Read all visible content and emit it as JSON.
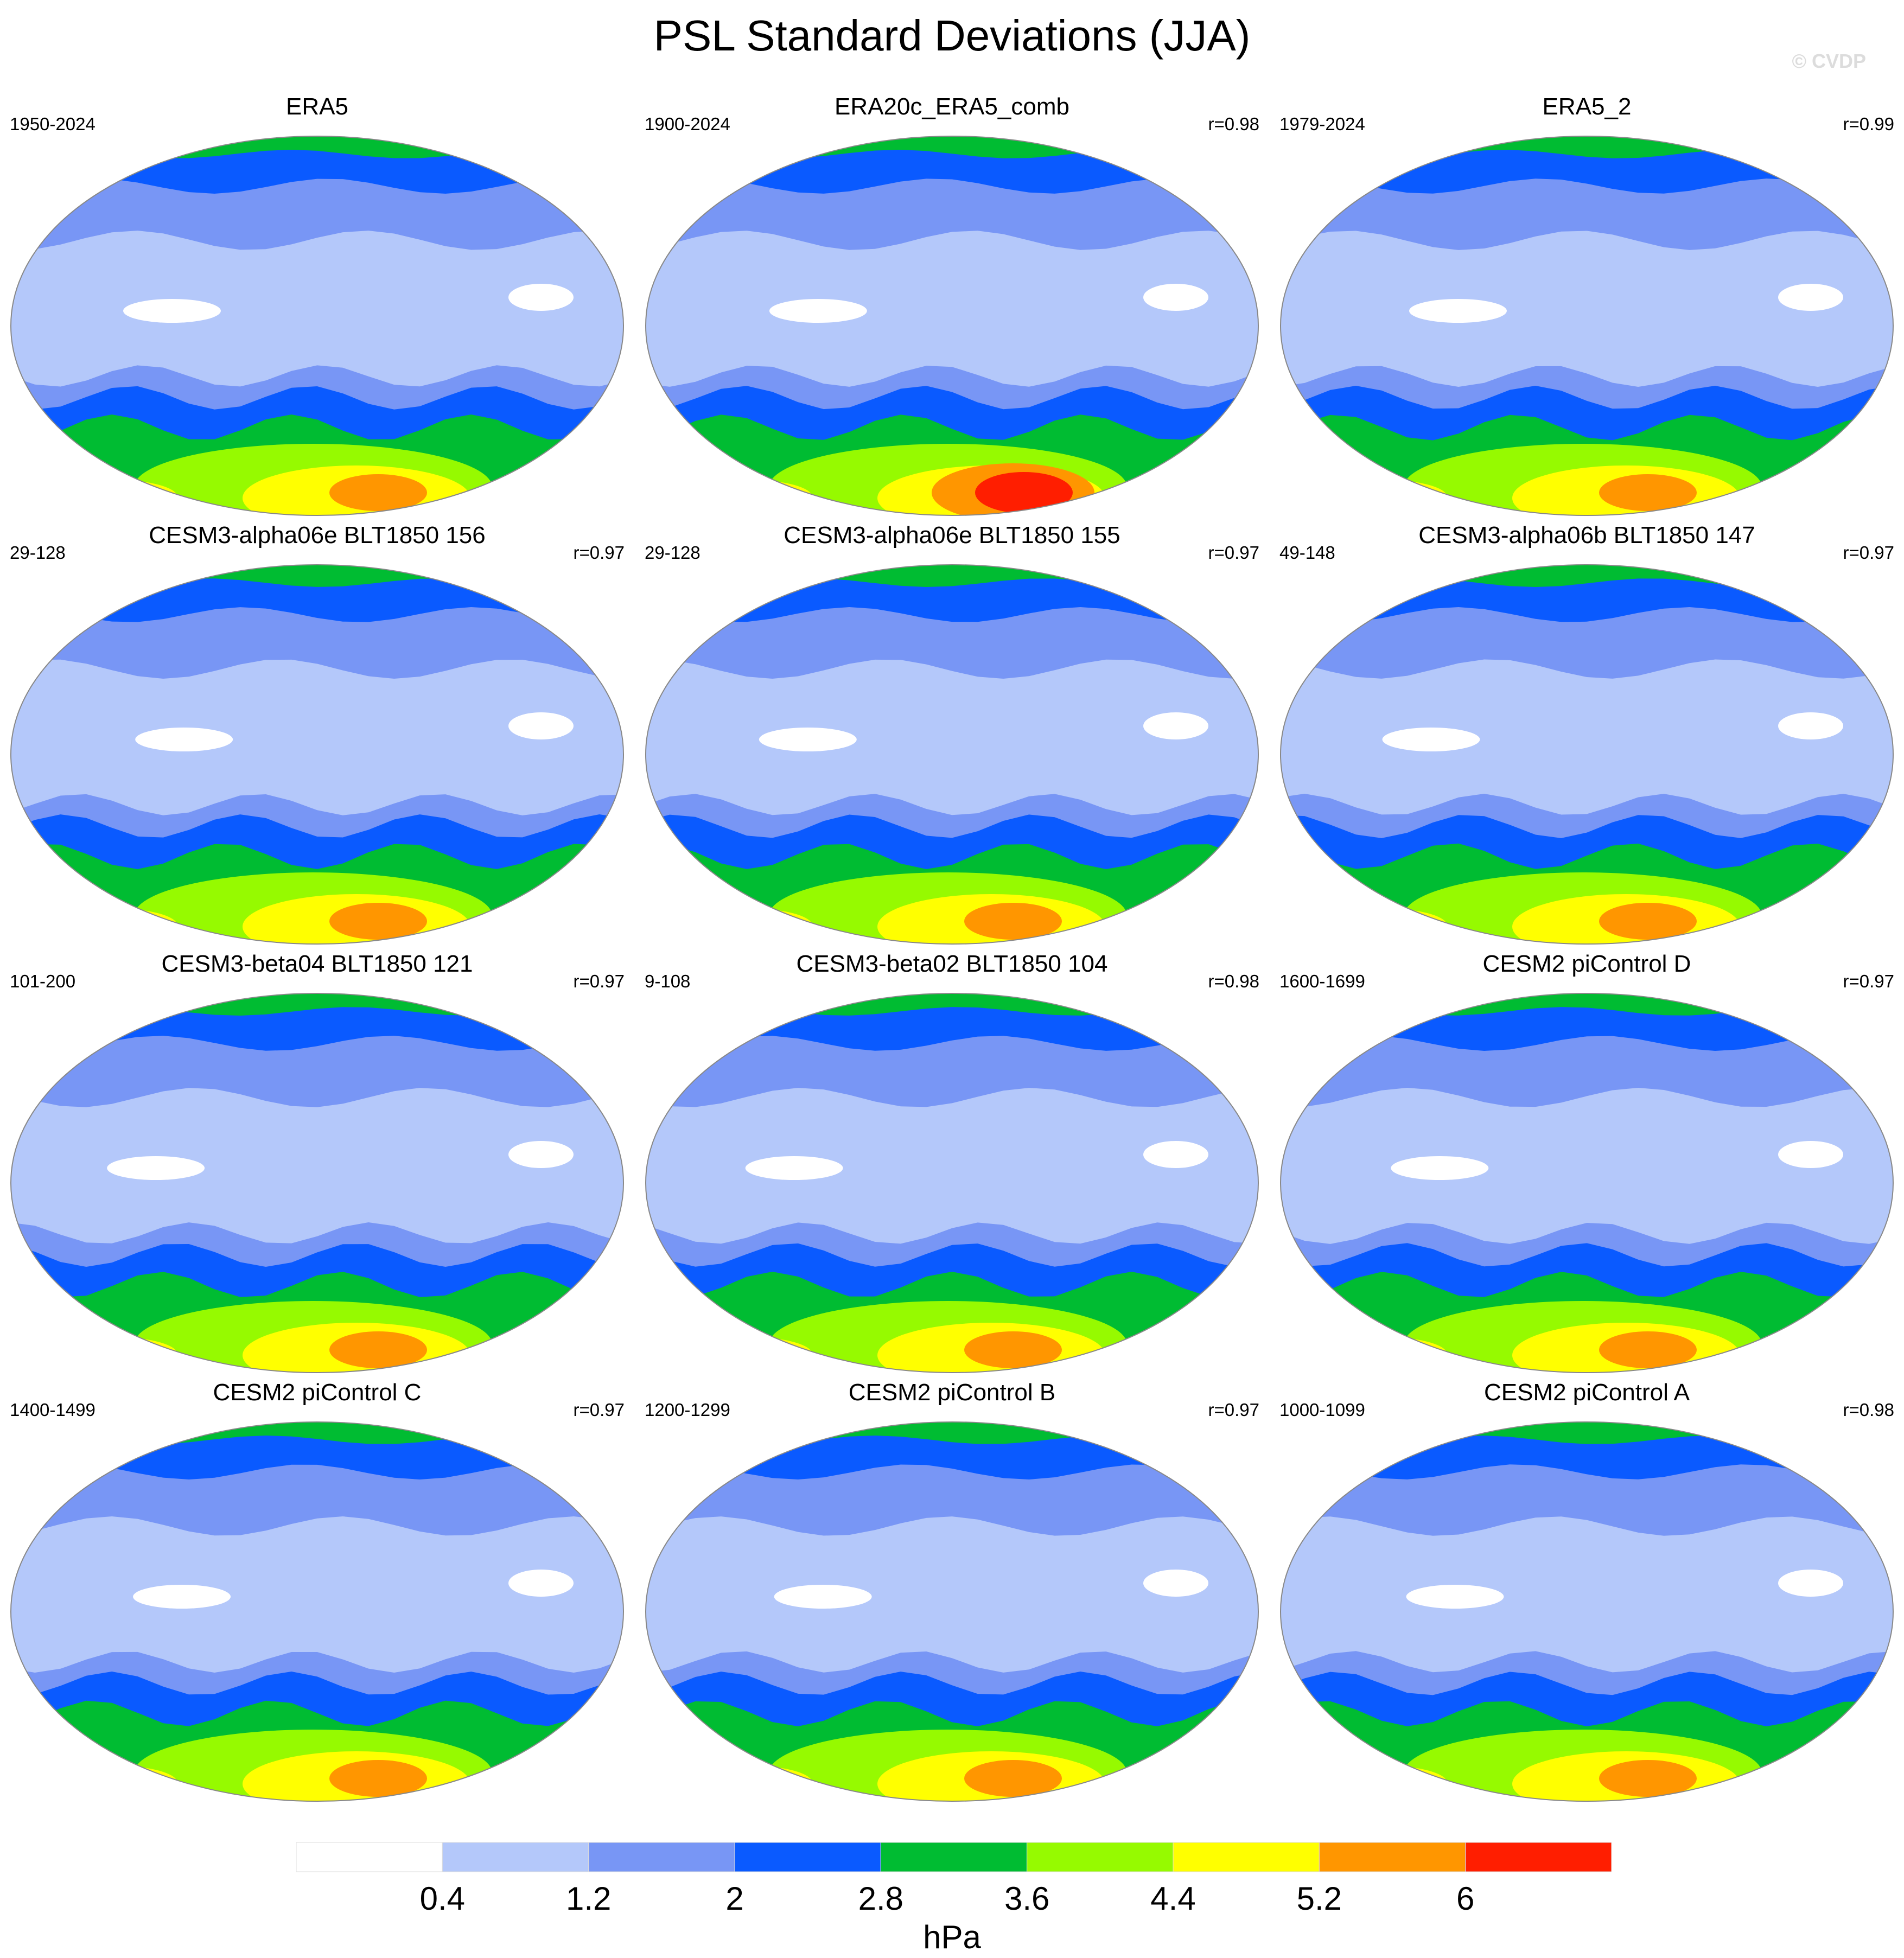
{
  "title": "PSL Standard Deviations (JJA)",
  "watermark": "© CVDP",
  "panels": [
    {
      "title": "ERA5",
      "period": "1950-2024",
      "corr": ""
    },
    {
      "title": "ERA20c_ERA5_comb",
      "period": "1900-2024",
      "corr": "r=0.98"
    },
    {
      "title": "ERA5_2",
      "period": "1979-2024",
      "corr": "r=0.99"
    },
    {
      "title": "CESM3-alpha06e BLT1850 156",
      "period": "29-128",
      "corr": "r=0.97"
    },
    {
      "title": "CESM3-alpha06e BLT1850 155",
      "period": "29-128",
      "corr": "r=0.97"
    },
    {
      "title": "CESM3-alpha06b BLT1850 147",
      "period": "49-148",
      "corr": "r=0.97"
    },
    {
      "title": "CESM3-beta04 BLT1850 121",
      "period": "101-200",
      "corr": "r=0.97"
    },
    {
      "title": "CESM3-beta02 BLT1850 104",
      "period": "9-108",
      "corr": "r=0.98"
    },
    {
      "title": "CESM2 piControl D",
      "period": "1600-1699",
      "corr": "r=0.97"
    },
    {
      "title": "CESM2 piControl C",
      "period": "1400-1499",
      "corr": "r=0.97"
    },
    {
      "title": "CESM2 piControl B",
      "period": "1200-1299",
      "corr": "r=0.97"
    },
    {
      "title": "CESM2 piControl A",
      "period": "1000-1099",
      "corr": "r=0.98"
    }
  ],
  "colorbar": {
    "labels": [
      "0.4",
      "1.2",
      "2",
      "2.8",
      "3.6",
      "4.4",
      "5.2",
      "6"
    ],
    "units": "hPa",
    "colors": [
      "#ffffff",
      "#b4c8fa",
      "#7896f5",
      "#0a5aff",
      "#00bc32",
      "#96fa00",
      "#ffff00",
      "#ff9600",
      "#ff1e00"
    ]
  }
}
